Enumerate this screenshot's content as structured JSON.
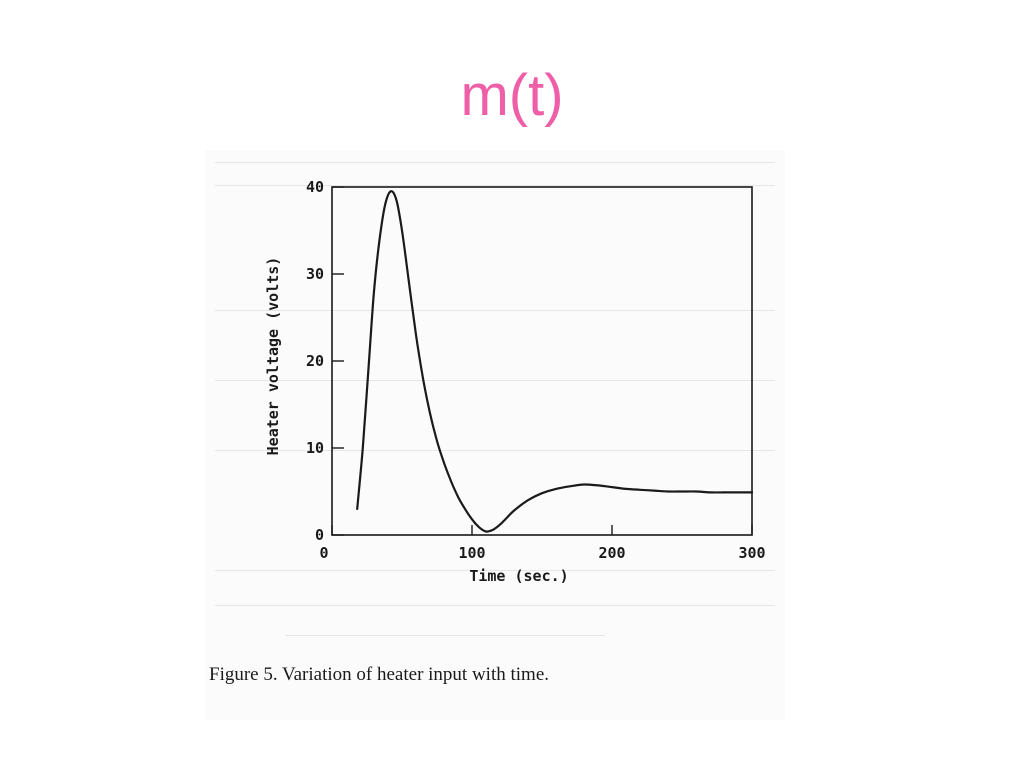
{
  "slide": {
    "title": "m(t)",
    "caption": "Figure 5. Variation of heater input with time."
  },
  "colors": {
    "title": "#ef5fa7",
    "ink": "#1a1a1a"
  },
  "chart_data": {
    "type": "line",
    "title": "",
    "xlabel": "Time (sec.)",
    "ylabel": "Heater voltage (volts)",
    "xlim": [
      0,
      300
    ],
    "ylim": [
      0,
      40
    ],
    "x_ticks": [
      0,
      100,
      200,
      300
    ],
    "y_ticks": [
      0,
      10,
      20,
      30,
      40
    ],
    "grid": false,
    "series": [
      {
        "x": [
          18,
          22,
          26,
          30,
          34,
          38,
          42,
          46,
          50,
          55,
          60,
          65,
          70,
          75,
          80,
          85,
          90,
          95,
          100,
          105,
          110,
          115,
          120,
          125,
          130,
          140,
          150,
          160,
          170,
          180,
          190,
          200,
          210,
          220,
          230,
          240,
          250,
          260,
          270,
          280,
          290,
          300
        ],
        "y": [
          3,
          10,
          19,
          28,
          34,
          38,
          39.5,
          38.5,
          35,
          29,
          23,
          18,
          14,
          10.8,
          8.3,
          6.2,
          4.4,
          3,
          1.8,
          0.9,
          0.4,
          0.6,
          1.2,
          2,
          2.8,
          4,
          4.8,
          5.3,
          5.6,
          5.8,
          5.7,
          5.5,
          5.3,
          5.2,
          5.1,
          5,
          5,
          5,
          4.9,
          4.9,
          4.9,
          4.9
        ]
      }
    ]
  }
}
